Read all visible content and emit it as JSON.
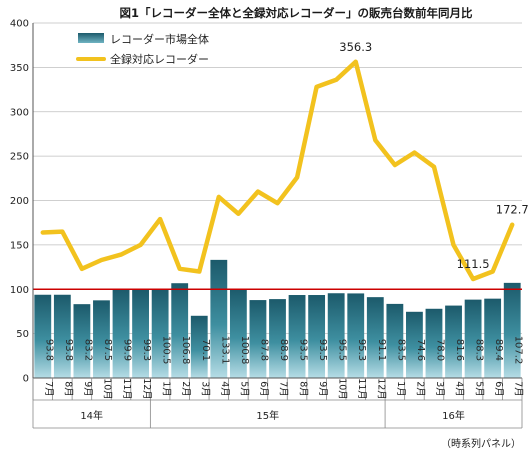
{
  "chart_data": {
    "type": "bar",
    "title": "図1「レコーダー全体と全録対応レコーダー」の販売台数前年同月比",
    "categories": [
      "7月",
      "8月",
      "9月",
      "10月",
      "11月",
      "12月",
      "1月",
      "2月",
      "3月",
      "4月",
      "5月",
      "6月",
      "7月",
      "8月",
      "9月",
      "10月",
      "11月",
      "12月",
      "1月",
      "2月",
      "3月",
      "4月",
      "5月",
      "6月",
      "7月"
    ],
    "year_groups": [
      {
        "label": "14年",
        "start": 0,
        "end": 5
      },
      {
        "label": "15年",
        "start": 6,
        "end": 17
      },
      {
        "label": "16年",
        "start": 18,
        "end": 24
      }
    ],
    "ylim": [
      0,
      400
    ],
    "yticks": [
      0,
      50,
      100,
      150,
      200,
      250,
      300,
      350,
      400
    ],
    "reference_line": 100,
    "series": [
      {
        "name": "レコーダー市場全体",
        "kind": "bar",
        "values": [
          93.8,
          93.8,
          83.2,
          87.5,
          99.9,
          99.3,
          100.5,
          106.8,
          70.1,
          133.1,
          100.8,
          87.8,
          88.9,
          93.5,
          93.5,
          95.5,
          95.3,
          91.1,
          83.5,
          74.6,
          78.0,
          81.6,
          88.3,
          89.4,
          107.2
        ],
        "labels": [
          "93.8",
          "93.8",
          "83.2",
          "87.5",
          "99.9",
          "99.3",
          "100.5",
          "106.8",
          "70.1",
          "133.1",
          "100.8",
          "87.8",
          "88.9",
          "93.5",
          "93.5",
          "95.5",
          "95.3",
          "91.1",
          "83.5",
          "74.6",
          "78.0",
          "81.6",
          "88.3",
          "89.4",
          "107.2"
        ]
      },
      {
        "name": "全録対応レコーダー",
        "kind": "line",
        "values": [
          164,
          165,
          123,
          133,
          139,
          150,
          179,
          123,
          120,
          204,
          185,
          210,
          197,
          226,
          328,
          336,
          356.3,
          268,
          240,
          254,
          238,
          150,
          111.5,
          120,
          172.7
        ]
      }
    ],
    "annotations": [
      {
        "index": 16,
        "text": "356.3"
      },
      {
        "index": 22,
        "text": "111.5"
      },
      {
        "index": 24,
        "text": "172.7"
      }
    ],
    "source_note": "（時系列パネル）",
    "colors": {
      "bar_top": "#1c5a6b",
      "bar_mid": "#3e8fa0",
      "bar_bottom": "#b6dde6",
      "line": "#f2c21e",
      "reference": "#cc0000",
      "grid": "#bfbfbf"
    },
    "grid": true,
    "legend_position": "top-left"
  }
}
